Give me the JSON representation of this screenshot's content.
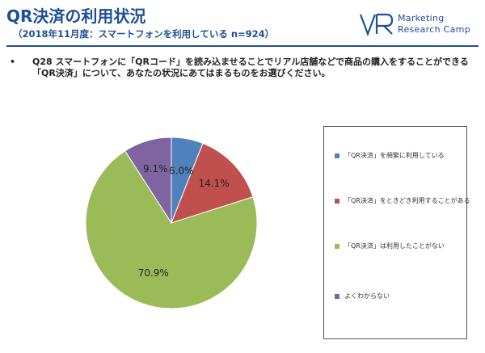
{
  "header": {
    "title": "QR決済の利用状況",
    "subtitle": "（2018年11月度：スマートフォンを利用している n=924）"
  },
  "logo": {
    "line1": "Marketing",
    "line2": "Research Camp",
    "color": "#1f4e9a"
  },
  "question": {
    "bullet": "•",
    "text": "Q28 スマートフォンに「QRコード」を読み込ませることでリアル店舗などで商品の購入をすることができる「QR決済」について、あなたの状況にあてはまるものをお選びください。"
  },
  "chart_data": {
    "type": "pie",
    "start_angle_deg": 0,
    "direction": "clockwise",
    "slices": [
      {
        "label": "「QR決済」を頻繁に利用している",
        "value": 6.0,
        "display": "6.0%",
        "color": "#4f81bd"
      },
      {
        "label": "「QR決済」をときどき利用することがある",
        "value": 14.1,
        "display": "14.1%",
        "color": "#c0504d"
      },
      {
        "label": "「QR決済」は利用したことがない",
        "value": 70.9,
        "display": "70.9%",
        "color": "#9bbb59"
      },
      {
        "label": "よくわからない",
        "value": 9.1,
        "display": "9.1%",
        "color": "#8064a2"
      }
    ],
    "legend_position": "right"
  }
}
